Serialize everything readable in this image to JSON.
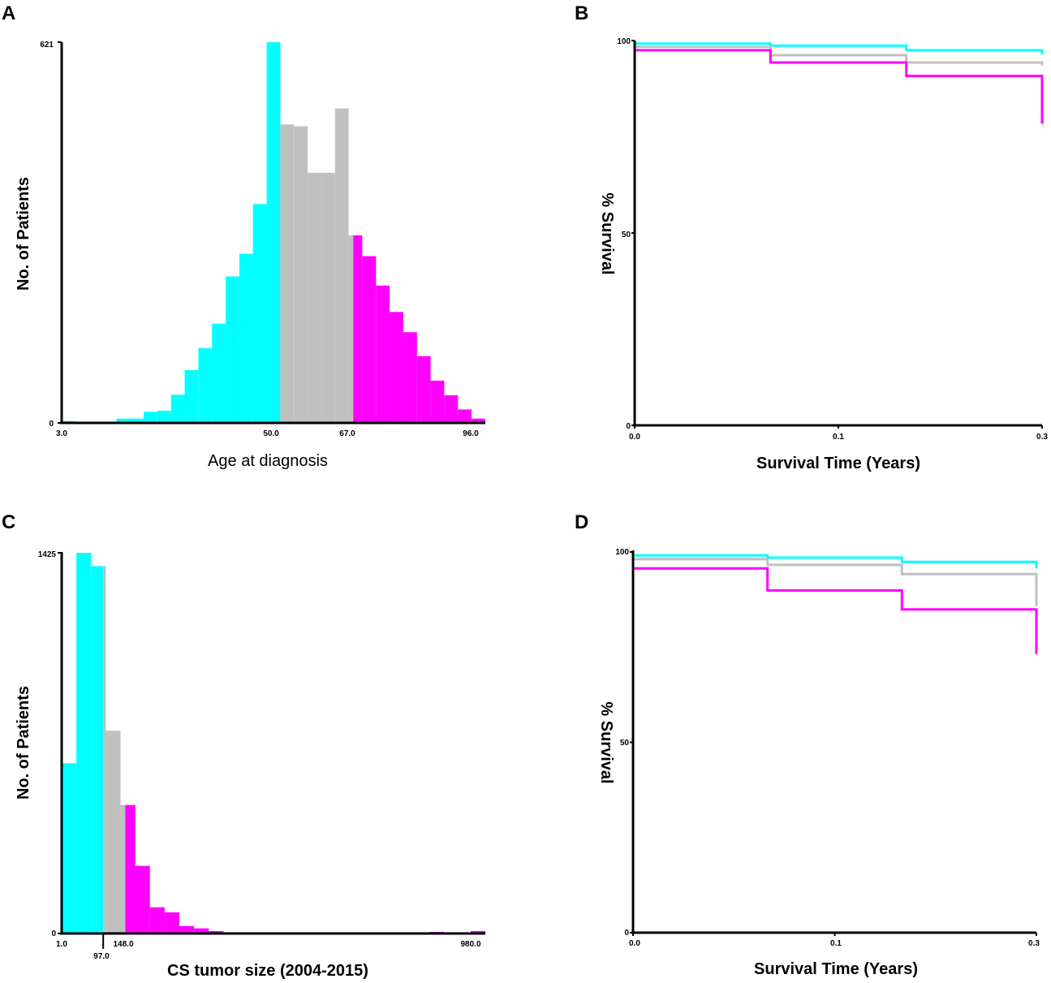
{
  "colors": {
    "young": "#00ffff",
    "middle": "#c0c0c0",
    "old": "#ff00ff",
    "axis": "#000000"
  },
  "chart_data": [
    {
      "panel": "A",
      "type": "bar",
      "subtype": "histogram",
      "xlabel": "Age at diagnosis",
      "ylabel": "No. of Patients",
      "ylim": [
        0,
        621
      ],
      "xlim": [
        3,
        96
      ],
      "ytick_labels": [
        "621",
        "0"
      ],
      "xtick_labels": [
        "3.0",
        "50.0",
        "67.0",
        "96.0"
      ],
      "bins": [
        {
          "start": 3,
          "end": 6,
          "value": 3,
          "group": "young"
        },
        {
          "start": 15,
          "end": 21,
          "value": 7,
          "group": "young"
        },
        {
          "start": 21,
          "end": 24,
          "value": 18,
          "group": "young"
        },
        {
          "start": 24,
          "end": 27,
          "value": 20,
          "group": "young"
        },
        {
          "start": 27,
          "end": 30,
          "value": 46,
          "group": "young"
        },
        {
          "start": 30,
          "end": 33,
          "value": 86,
          "group": "young"
        },
        {
          "start": 33,
          "end": 36,
          "value": 122,
          "group": "young"
        },
        {
          "start": 36,
          "end": 39,
          "value": 162,
          "group": "young"
        },
        {
          "start": 39,
          "end": 42,
          "value": 239,
          "group": "young"
        },
        {
          "start": 42,
          "end": 45,
          "value": 276,
          "group": "young"
        },
        {
          "start": 45,
          "end": 48,
          "value": 357,
          "group": "young"
        },
        {
          "start": 48,
          "end": 51,
          "value": 621,
          "group": "young"
        },
        {
          "start": 51,
          "end": 54,
          "value": 487,
          "group": "middle"
        },
        {
          "start": 54,
          "end": 57,
          "value": 484,
          "group": "middle"
        },
        {
          "start": 57,
          "end": 60,
          "value": 408,
          "group": "middle"
        },
        {
          "start": 60,
          "end": 63,
          "value": 408,
          "group": "middle"
        },
        {
          "start": 63,
          "end": 66,
          "value": 513,
          "group": "middle"
        },
        {
          "start": 66,
          "end": 67,
          "value": 306,
          "group": "middle"
        },
        {
          "start": 67,
          "end": 69,
          "value": 306,
          "group": "old"
        },
        {
          "start": 69,
          "end": 72,
          "value": 272,
          "group": "old"
        },
        {
          "start": 72,
          "end": 75,
          "value": 224,
          "group": "old"
        },
        {
          "start": 75,
          "end": 78,
          "value": 181,
          "group": "old"
        },
        {
          "start": 78,
          "end": 81,
          "value": 148,
          "group": "old"
        },
        {
          "start": 81,
          "end": 84,
          "value": 109,
          "group": "old"
        },
        {
          "start": 84,
          "end": 87,
          "value": 69,
          "group": "old"
        },
        {
          "start": 87,
          "end": 90,
          "value": 45,
          "group": "old"
        },
        {
          "start": 90,
          "end": 93,
          "value": 22,
          "group": "old"
        },
        {
          "start": 93,
          "end": 96,
          "value": 7,
          "group": "old"
        }
      ]
    },
    {
      "panel": "B",
      "type": "line",
      "subtype": "kaplan-meier",
      "xlabel": "Survival Time (Years)",
      "ylabel": "% Survival",
      "xlim": [
        0,
        0.3
      ],
      "ylim": [
        0,
        100
      ],
      "xtick_labels": [
        "0.0",
        "0.1",
        "0.3"
      ],
      "xtick_values": [
        0,
        0.15,
        0.3
      ],
      "ytick_labels": [
        "100",
        "50",
        "0"
      ],
      "ytick_values": [
        100,
        50,
        0
      ],
      "series": [
        {
          "name": "young",
          "points": [
            [
              0,
              100
            ],
            [
              0,
              99.2
            ],
            [
              0.1,
              99.2
            ],
            [
              0.1,
              98.7
            ],
            [
              0.2,
              98.7
            ],
            [
              0.2,
              97.5
            ],
            [
              0.3,
              97.5
            ],
            [
              0.3,
              96.4
            ]
          ]
        },
        {
          "name": "middle",
          "points": [
            [
              0,
              100
            ],
            [
              0,
              98.4
            ],
            [
              0.1,
              98.4
            ],
            [
              0.1,
              96.2
            ],
            [
              0.2,
              96.2
            ],
            [
              0.2,
              94.3
            ],
            [
              0.3,
              94.3
            ],
            [
              0.3,
              93.6
            ]
          ]
        },
        {
          "name": "old",
          "points": [
            [
              0,
              100
            ],
            [
              0,
              97.5
            ],
            [
              0.1,
              97.5
            ],
            [
              0.1,
              94.3
            ],
            [
              0.2,
              94.3
            ],
            [
              0.2,
              90.8
            ],
            [
              0.3,
              90.8
            ],
            [
              0.3,
              78.4
            ]
          ]
        }
      ]
    },
    {
      "panel": "C",
      "type": "bar",
      "subtype": "histogram",
      "xlabel": "CS tumor size (2004-2015)",
      "ylabel": "No. of Patients",
      "ylim": [
        0,
        1425
      ],
      "xlim": [
        1,
        980
      ],
      "ytick_labels": [
        "1425",
        "0"
      ],
      "xtick_labels": [
        "1.0",
        "97.0",
        "148.0",
        "980.0"
      ],
      "bins": [
        {
          "start": 1,
          "end": 35,
          "value": 637,
          "group": "young"
        },
        {
          "start": 35,
          "end": 69,
          "value": 1425,
          "group": "young"
        },
        {
          "start": 69,
          "end": 97,
          "value": 1375,
          "group": "young"
        },
        {
          "start": 97,
          "end": 103,
          "value": 1375,
          "group": "middle"
        },
        {
          "start": 103,
          "end": 137,
          "value": 759,
          "group": "middle"
        },
        {
          "start": 137,
          "end": 148,
          "value": 481,
          "group": "middle"
        },
        {
          "start": 148,
          "end": 171,
          "value": 481,
          "group": "old"
        },
        {
          "start": 171,
          "end": 205,
          "value": 253,
          "group": "old"
        },
        {
          "start": 205,
          "end": 239,
          "value": 98,
          "group": "old"
        },
        {
          "start": 239,
          "end": 273,
          "value": 79,
          "group": "old"
        },
        {
          "start": 273,
          "end": 307,
          "value": 28,
          "group": "old"
        },
        {
          "start": 307,
          "end": 341,
          "value": 19,
          "group": "old"
        },
        {
          "start": 341,
          "end": 375,
          "value": 9,
          "group": "old"
        },
        {
          "start": 375,
          "end": 409,
          "value": 4,
          "group": "old"
        },
        {
          "start": 409,
          "end": 443,
          "value": 2,
          "group": "old"
        },
        {
          "start": 851,
          "end": 885,
          "value": 6,
          "group": "old"
        },
        {
          "start": 946,
          "end": 980,
          "value": 9,
          "group": "old"
        }
      ]
    },
    {
      "panel": "D",
      "type": "line",
      "subtype": "kaplan-meier",
      "xlabel": "Survival Time (Years)",
      "ylabel": "% Survival",
      "xlim": [
        0,
        0.3
      ],
      "ylim": [
        0,
        100
      ],
      "xtick_labels": [
        "0.0",
        "0.1",
        "0.3"
      ],
      "xtick_values": [
        0,
        0.15,
        0.3
      ],
      "ytick_labels": [
        "100",
        "50",
        "0"
      ],
      "ytick_values": [
        100,
        50,
        0
      ],
      "series": [
        {
          "name": "young",
          "points": [
            [
              0,
              100
            ],
            [
              0,
              99.1
            ],
            [
              0.1,
              99.1
            ],
            [
              0.1,
              98.5
            ],
            [
              0.2,
              98.5
            ],
            [
              0.2,
              97.4
            ],
            [
              0.3,
              97.4
            ],
            [
              0.3,
              95.7
            ]
          ]
        },
        {
          "name": "middle",
          "points": [
            [
              0,
              100
            ],
            [
              0,
              98.1
            ],
            [
              0.1,
              98.1
            ],
            [
              0.1,
              96.6
            ],
            [
              0.2,
              96.6
            ],
            [
              0.2,
              94.2
            ],
            [
              0.3,
              94.2
            ],
            [
              0.3,
              85.8
            ]
          ]
        },
        {
          "name": "old",
          "points": [
            [
              0,
              100
            ],
            [
              0,
              95.7
            ],
            [
              0.1,
              95.7
            ],
            [
              0.1,
              89.9
            ],
            [
              0.2,
              89.9
            ],
            [
              0.2,
              84.9
            ],
            [
              0.3,
              84.9
            ],
            [
              0.3,
              73.2
            ]
          ]
        }
      ]
    }
  ]
}
